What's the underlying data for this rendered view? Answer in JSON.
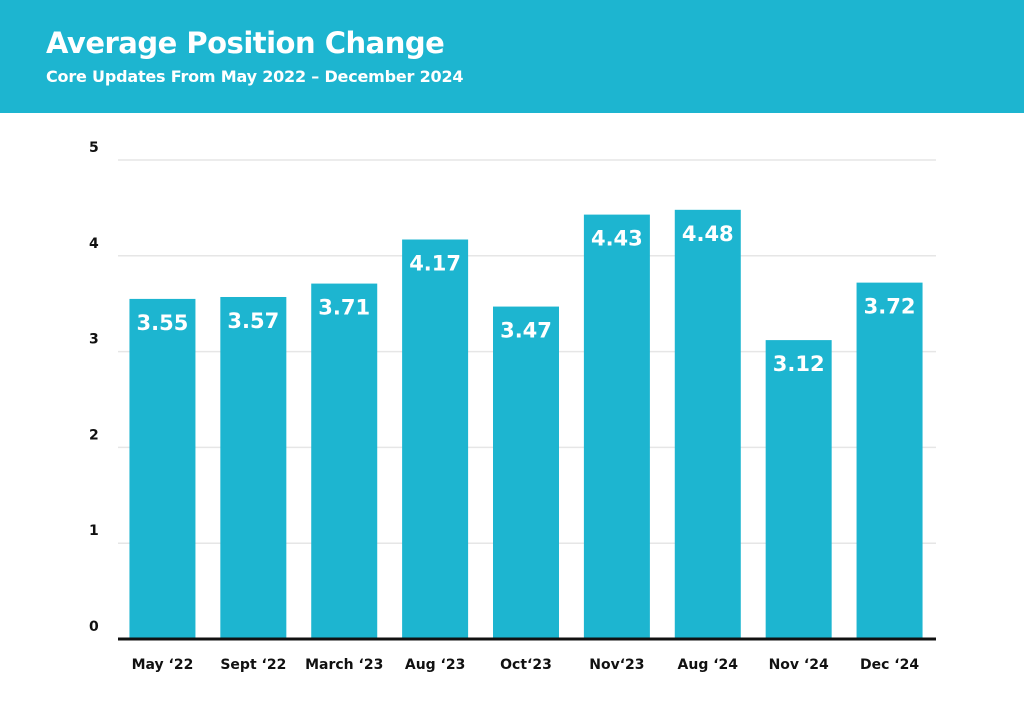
{
  "header": {
    "title": "Average Position Change",
    "subtitle": "Core Updates From May 2022 – December 2024"
  },
  "colors": {
    "header_bg": "#1db5d0",
    "bar": "#1db5d0",
    "bar_label": "#ffffff",
    "axis": "#111111",
    "grid": "#e6e6e6"
  },
  "chart_data": {
    "type": "bar",
    "title": "Average Position Change",
    "subtitle": "Core Updates From May 2022 – December 2024",
    "categories": [
      "May ‘22",
      "Sept ‘22",
      "March ‘23",
      "Aug ‘23",
      "Oct‘23",
      "Nov‘23",
      "Aug ‘24",
      "Nov ‘24",
      "Dec ‘24"
    ],
    "values": [
      3.55,
      3.57,
      3.71,
      4.17,
      3.47,
      4.43,
      4.48,
      3.12,
      3.72
    ],
    "value_labels": [
      "3.55",
      "3.57",
      "3.71",
      "4.17",
      "3.47",
      "4.43",
      "4.48",
      "3.12",
      "3.72"
    ],
    "yticks": [
      0,
      1,
      2,
      3,
      4,
      5
    ],
    "ylim": [
      0,
      5
    ],
    "xlabel": "",
    "ylabel": "",
    "grid": true,
    "legend": "none"
  }
}
